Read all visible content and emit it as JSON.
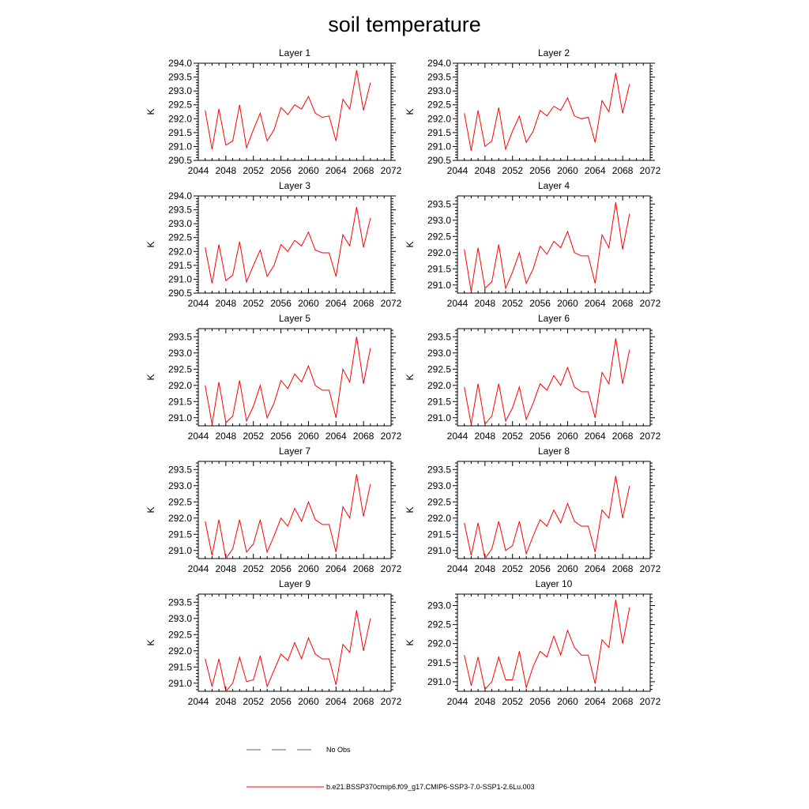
{
  "title": "soil temperature",
  "legend": {
    "obs_label": "No Obs",
    "obs_color": "#4b5fa8",
    "model_label": "b.e21.BSSP370cmip6.f09_g17.CMIP6-SSP3-7.0-SSP1-2.6Lu.003",
    "model_color": "#ff0000"
  },
  "chart_data": [
    {
      "type": "line",
      "title": "Layer 1",
      "ylabel": "K",
      "xlim": [
        2044,
        2072
      ],
      "xticks": [
        2044,
        2048,
        2052,
        2056,
        2060,
        2064,
        2068,
        2072
      ],
      "ylim": [
        290.5,
        294.0
      ],
      "yticks": [
        "290.5",
        "291.0",
        "291.5",
        "292.0",
        "292.5",
        "293.0",
        "293.5",
        "294.0"
      ],
      "x": [
        2045,
        2046,
        2047,
        2048,
        2049,
        2050,
        2051,
        2052,
        2053,
        2054,
        2055,
        2056,
        2057,
        2058,
        2059,
        2060,
        2061,
        2062,
        2063,
        2064,
        2065,
        2066,
        2067,
        2068,
        2069
      ],
      "values": [
        292.3,
        290.9,
        292.35,
        291.05,
        291.2,
        292.5,
        290.95,
        291.6,
        292.2,
        291.2,
        291.6,
        292.4,
        292.15,
        292.5,
        292.35,
        292.8,
        292.2,
        292.05,
        292.1,
        291.2,
        292.7,
        292.35,
        293.75,
        292.3,
        293.3
      ]
    },
    {
      "type": "line",
      "title": "Layer 2",
      "ylabel": "K",
      "xlim": [
        2044,
        2072
      ],
      "xticks": [
        2044,
        2048,
        2052,
        2056,
        2060,
        2064,
        2068,
        2072
      ],
      "ylim": [
        290.5,
        294.0
      ],
      "yticks": [
        "290.5",
        "291.0",
        "291.5",
        "292.0",
        "292.5",
        "293.0",
        "293.5",
        "294.0"
      ],
      "x": [
        2045,
        2046,
        2047,
        2048,
        2049,
        2050,
        2051,
        2052,
        2053,
        2054,
        2055,
        2056,
        2057,
        2058,
        2059,
        2060,
        2061,
        2062,
        2063,
        2064,
        2065,
        2066,
        2067,
        2068,
        2069
      ],
      "values": [
        292.2,
        290.85,
        292.3,
        291.0,
        291.2,
        292.4,
        290.9,
        291.55,
        292.1,
        291.15,
        291.55,
        292.3,
        292.1,
        292.45,
        292.3,
        292.75,
        292.1,
        292.0,
        292.05,
        291.15,
        292.65,
        292.25,
        293.65,
        292.2,
        293.25
      ]
    },
    {
      "type": "line",
      "title": "Layer 3",
      "ylabel": "K",
      "xlim": [
        2044,
        2072
      ],
      "xticks": [
        2044,
        2048,
        2052,
        2056,
        2060,
        2064,
        2068,
        2072
      ],
      "ylim": [
        290.5,
        294.0
      ],
      "yticks": [
        "290.5",
        "291.0",
        "291.5",
        "292.0",
        "292.5",
        "293.0",
        "293.5",
        "294.0"
      ],
      "x": [
        2045,
        2046,
        2047,
        2048,
        2049,
        2050,
        2051,
        2052,
        2053,
        2054,
        2055,
        2056,
        2057,
        2058,
        2059,
        2060,
        2061,
        2062,
        2063,
        2064,
        2065,
        2066,
        2067,
        2068,
        2069
      ],
      "values": [
        292.15,
        290.85,
        292.25,
        290.95,
        291.15,
        292.35,
        290.9,
        291.5,
        292.05,
        291.1,
        291.5,
        292.25,
        292.0,
        292.4,
        292.2,
        292.7,
        292.05,
        291.95,
        291.95,
        291.1,
        292.6,
        292.2,
        293.6,
        292.15,
        293.2
      ]
    },
    {
      "type": "line",
      "title": "Layer 4",
      "ylabel": "K",
      "xlim": [
        2044,
        2072
      ],
      "xticks": [
        2044,
        2048,
        2052,
        2056,
        2060,
        2064,
        2068,
        2072
      ],
      "ylim": [
        290.75,
        293.75
      ],
      "yticks": [
        "291.0",
        "291.5",
        "292.0",
        "292.5",
        "293.0",
        "293.5"
      ],
      "x": [
        2045,
        2046,
        2047,
        2048,
        2049,
        2050,
        2051,
        2052,
        2053,
        2054,
        2055,
        2056,
        2057,
        2058,
        2059,
        2060,
        2061,
        2062,
        2063,
        2064,
        2065,
        2066,
        2067,
        2068,
        2069
      ],
      "values": [
        292.1,
        290.8,
        292.15,
        290.9,
        291.1,
        292.25,
        290.9,
        291.4,
        292.0,
        291.05,
        291.5,
        292.2,
        291.95,
        292.35,
        292.15,
        292.65,
        292.0,
        291.9,
        291.9,
        291.05,
        292.55,
        292.15,
        293.55,
        292.1,
        293.2
      ]
    },
    {
      "type": "line",
      "title": "Layer 5",
      "ylabel": "K",
      "xlim": [
        2044,
        2072
      ],
      "xticks": [
        2044,
        2048,
        2052,
        2056,
        2060,
        2064,
        2068,
        2072
      ],
      "ylim": [
        290.75,
        293.75
      ],
      "yticks": [
        "291.0",
        "291.5",
        "292.0",
        "292.5",
        "293.0",
        "293.5"
      ],
      "x": [
        2045,
        2046,
        2047,
        2048,
        2049,
        2050,
        2051,
        2052,
        2053,
        2054,
        2055,
        2056,
        2057,
        2058,
        2059,
        2060,
        2061,
        2062,
        2063,
        2064,
        2065,
        2066,
        2067,
        2068,
        2069
      ],
      "values": [
        292.0,
        290.8,
        292.1,
        290.85,
        291.05,
        292.15,
        290.9,
        291.35,
        292.0,
        291.0,
        291.45,
        292.15,
        291.9,
        292.35,
        292.1,
        292.6,
        292.0,
        291.85,
        291.85,
        291.0,
        292.5,
        292.1,
        293.5,
        292.05,
        293.15
      ]
    },
    {
      "type": "line",
      "title": "Layer 6",
      "ylabel": "K",
      "xlim": [
        2044,
        2072
      ],
      "xticks": [
        2044,
        2048,
        2052,
        2056,
        2060,
        2064,
        2068,
        2072
      ],
      "ylim": [
        290.75,
        293.75
      ],
      "yticks": [
        "291.0",
        "291.5",
        "292.0",
        "292.5",
        "293.0",
        "293.5"
      ],
      "x": [
        2045,
        2046,
        2047,
        2048,
        2049,
        2050,
        2051,
        2052,
        2053,
        2054,
        2055,
        2056,
        2057,
        2058,
        2059,
        2060,
        2061,
        2062,
        2063,
        2064,
        2065,
        2066,
        2067,
        2068,
        2069
      ],
      "values": [
        291.95,
        290.8,
        292.05,
        290.8,
        291.05,
        292.05,
        290.9,
        291.3,
        291.95,
        290.95,
        291.45,
        292.05,
        291.85,
        292.3,
        292.0,
        292.55,
        291.95,
        291.8,
        291.8,
        291.0,
        292.4,
        292.05,
        293.45,
        292.05,
        293.1
      ]
    },
    {
      "type": "line",
      "title": "Layer 7",
      "ylabel": "K",
      "xlim": [
        2044,
        2072
      ],
      "xticks": [
        2044,
        2048,
        2052,
        2056,
        2060,
        2064,
        2068,
        2072
      ],
      "ylim": [
        290.75,
        293.75
      ],
      "yticks": [
        "291.0",
        "291.5",
        "292.0",
        "292.5",
        "293.0",
        "293.5"
      ],
      "x": [
        2045,
        2046,
        2047,
        2048,
        2049,
        2050,
        2051,
        2052,
        2053,
        2054,
        2055,
        2056,
        2057,
        2058,
        2059,
        2060,
        2061,
        2062,
        2063,
        2064,
        2065,
        2066,
        2067,
        2068,
        2069
      ],
      "values": [
        291.9,
        290.85,
        291.95,
        290.75,
        291.05,
        291.95,
        290.95,
        291.2,
        291.95,
        290.95,
        291.45,
        292.0,
        291.75,
        292.3,
        291.9,
        292.5,
        291.95,
        291.8,
        291.8,
        290.95,
        292.35,
        292.0,
        293.35,
        292.05,
        293.05
      ]
    },
    {
      "type": "line",
      "title": "Layer 8",
      "ylabel": "K",
      "xlim": [
        2044,
        2072
      ],
      "xticks": [
        2044,
        2048,
        2052,
        2056,
        2060,
        2064,
        2068,
        2072
      ],
      "ylim": [
        290.75,
        293.75
      ],
      "yticks": [
        "291.0",
        "291.5",
        "292.0",
        "292.5",
        "293.0",
        "293.5"
      ],
      "x": [
        2045,
        2046,
        2047,
        2048,
        2049,
        2050,
        2051,
        2052,
        2053,
        2054,
        2055,
        2056,
        2057,
        2058,
        2059,
        2060,
        2061,
        2062,
        2063,
        2064,
        2065,
        2066,
        2067,
        2068,
        2069
      ],
      "values": [
        291.85,
        290.85,
        291.85,
        290.75,
        291.05,
        291.9,
        291.0,
        291.15,
        291.9,
        290.9,
        291.45,
        291.95,
        291.75,
        292.25,
        291.85,
        292.45,
        291.9,
        291.75,
        291.75,
        290.95,
        292.25,
        292.0,
        293.3,
        292.0,
        293.0
      ]
    },
    {
      "type": "line",
      "title": "Layer 9",
      "ylabel": "K",
      "xlim": [
        2044,
        2072
      ],
      "xticks": [
        2044,
        2048,
        2052,
        2056,
        2060,
        2064,
        2068,
        2072
      ],
      "ylim": [
        290.75,
        293.75
      ],
      "yticks": [
        "291.0",
        "291.5",
        "292.0",
        "292.5",
        "293.0",
        "293.5"
      ],
      "x": [
        2045,
        2046,
        2047,
        2048,
        2049,
        2050,
        2051,
        2052,
        2053,
        2054,
        2055,
        2056,
        2057,
        2058,
        2059,
        2060,
        2061,
        2062,
        2063,
        2064,
        2065,
        2066,
        2067,
        2068,
        2069
      ],
      "values": [
        291.75,
        290.9,
        291.75,
        290.75,
        291.0,
        291.8,
        291.05,
        291.1,
        291.85,
        290.9,
        291.4,
        291.9,
        291.7,
        292.25,
        291.75,
        292.4,
        291.9,
        291.75,
        291.75,
        290.95,
        292.2,
        291.95,
        293.25,
        292.0,
        293.0
      ]
    },
    {
      "type": "line",
      "title": "Layer 10",
      "ylabel": "K",
      "xlim": [
        2044,
        2072
      ],
      "xticks": [
        2044,
        2048,
        2052,
        2056,
        2060,
        2064,
        2068,
        2072
      ],
      "ylim": [
        290.75,
        293.3
      ],
      "yticks": [
        "291.0",
        "291.5",
        "292.0",
        "292.5",
        "293.0"
      ],
      "x": [
        2045,
        2046,
        2047,
        2048,
        2049,
        2050,
        2051,
        2052,
        2053,
        2054,
        2055,
        2056,
        2057,
        2058,
        2059,
        2060,
        2061,
        2062,
        2063,
        2064,
        2065,
        2066,
        2067,
        2068,
        2069
      ],
      "values": [
        291.7,
        290.9,
        291.65,
        290.8,
        291.0,
        291.65,
        291.05,
        291.05,
        291.8,
        290.85,
        291.4,
        291.8,
        291.65,
        292.2,
        291.7,
        292.35,
        291.9,
        291.7,
        291.7,
        290.95,
        292.1,
        291.9,
        293.15,
        292.0,
        292.95
      ]
    }
  ]
}
